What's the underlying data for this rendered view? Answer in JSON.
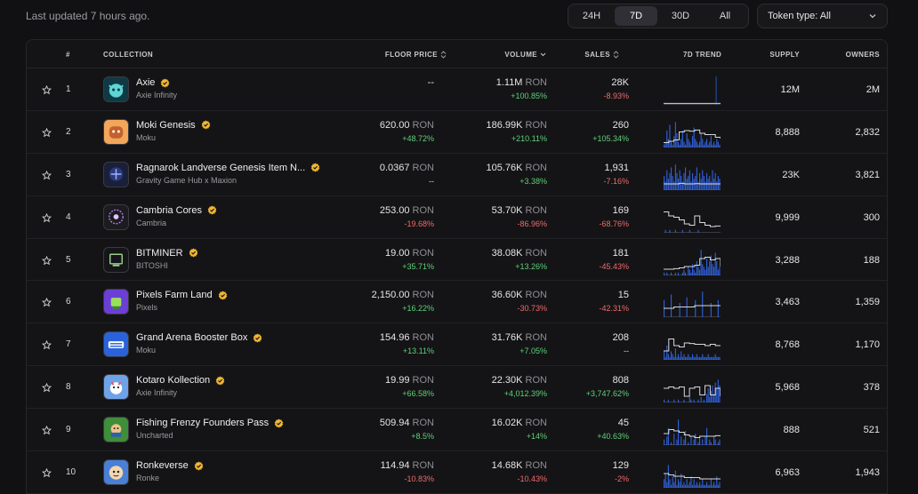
{
  "header": {
    "last_updated": "Last updated 7 hours ago.",
    "periods": [
      {
        "label": "24H",
        "active": false
      },
      {
        "label": "7D",
        "active": true
      },
      {
        "label": "30D",
        "active": false
      },
      {
        "label": "All",
        "active": false
      }
    ],
    "token_type": "Token type: All"
  },
  "columns": {
    "rank": "#",
    "collection": "COLLECTION",
    "floor_price": "FLOOR PRICE",
    "volume": "VOLUME",
    "sales": "SALES",
    "trend": "7D TREND",
    "supply": "SUPPLY",
    "owners": "OWNERS"
  },
  "colors": {
    "positive": "#5fd07a",
    "negative": "#ef6a6a",
    "trend_line": "#d8d8dc",
    "trend_bar": "#2f5fd6",
    "verified": "#f2b632"
  },
  "rows": [
    {
      "rank": "1",
      "name": "Axie",
      "creator": "Axie Infinity",
      "icon": "axie-logo-icon",
      "icon_bg": "#0f3a45",
      "floor": "--",
      "floor_unit": "",
      "floor_change": "",
      "floor_change_dir": "neu",
      "volume": "1.11M",
      "volume_unit": "RON",
      "volume_change": "+100.85%",
      "volume_change_dir": "pos",
      "sales": "28K",
      "sales_change": "-8.93%",
      "sales_change_dir": "neg",
      "supply": "12M",
      "owners": "2M",
      "trend_bars": [
        0,
        0,
        0,
        0,
        0,
        0,
        0,
        0,
        0,
        0,
        0,
        0,
        0,
        0,
        0,
        0,
        0,
        0,
        0,
        0,
        0,
        0,
        0,
        0,
        0,
        0,
        0,
        0,
        0,
        0,
        0,
        0,
        0,
        0,
        0,
        0,
        0,
        0,
        0,
        0,
        0,
        0,
        0,
        0,
        0,
        0,
        0,
        0,
        0,
        0,
        0,
        0,
        0,
        0,
        0,
        1,
        0,
        0,
        0,
        0
      ],
      "trend_line": [
        0.02,
        0.02,
        0.02,
        0.02,
        0.02,
        0.02,
        0.02,
        0.02,
        0.02,
        0.02,
        0.02,
        0.02
      ]
    },
    {
      "rank": "2",
      "name": "Moki Genesis",
      "creator": "Moku",
      "icon": "moki-logo-icon",
      "icon_bg": "#f2a65a",
      "floor": "620.00",
      "floor_unit": "RON",
      "floor_change": "+48.72%",
      "floor_change_dir": "pos",
      "volume": "186.99K",
      "volume_unit": "RON",
      "volume_change": "+210.11%",
      "volume_change_dir": "pos",
      "sales": "260",
      "sales_change": "+105.34%",
      "sales_change_dir": "pos",
      "supply": "8,888",
      "owners": "2,832",
      "trend_bars": [
        0.1,
        0.2,
        0.6,
        0.3,
        0.8,
        0.2,
        0.1,
        0.4,
        0.9,
        0.5,
        0.2,
        0.1,
        0.3,
        0.6,
        0.2,
        0.1,
        0.5,
        0.3,
        0.2,
        0.1,
        0.4,
        0.7,
        0.3,
        0.2,
        0.1,
        0.2,
        0.5,
        0.3,
        0.1,
        0.2,
        0.3,
        0.1,
        0.2,
        0.4,
        0.1,
        0.2,
        0.1,
        0.3,
        0.2,
        0.1
      ],
      "trend_line": [
        0.15,
        0.2,
        0.25,
        0.55,
        0.6,
        0.58,
        0.62,
        0.5,
        0.45,
        0.45,
        0.35,
        0.3
      ]
    },
    {
      "rank": "3",
      "name": "Ragnarok Landverse Genesis Item N...",
      "creator": "Gravity Game Hub x Maxion",
      "icon": "ragnarok-logo-icon",
      "icon_bg": "#1a1f3a",
      "floor": "0.0367",
      "floor_unit": "RON",
      "floor_change": "--",
      "floor_change_dir": "neu",
      "volume": "105.76K",
      "volume_unit": "RON",
      "volume_change": "+3.38%",
      "volume_change_dir": "pos",
      "sales": "1,931",
      "sales_change": "-7.16%",
      "sales_change_dir": "neg",
      "supply": "23K",
      "owners": "3,821",
      "trend_bars": [
        0.5,
        0.3,
        0.7,
        0.4,
        0.6,
        0.8,
        0.5,
        0.3,
        0.9,
        0.6,
        0.4,
        0.7,
        0.5,
        0.3,
        0.6,
        0.8,
        0.4,
        0.5,
        0.7,
        0.3,
        0.6,
        0.4,
        0.5,
        0.8,
        0.3,
        0.6,
        0.4,
        0.7,
        0.5,
        0.3,
        0.6,
        0.4,
        0.5,
        0.3,
        0.7,
        0.4,
        0.6,
        0.3,
        0.5,
        0.4
      ],
      "trend_line": [
        0.2,
        0.2,
        0.2,
        0.22,
        0.2,
        0.2,
        0.21,
        0.2,
        0.2,
        0.2,
        0.2,
        0.2
      ]
    },
    {
      "rank": "4",
      "name": "Cambria Cores",
      "creator": "Cambria",
      "icon": "cambria-logo-icon",
      "icon_bg": "#1b1b20",
      "floor": "253.00",
      "floor_unit": "RON",
      "floor_change": "-19.68%",
      "floor_change_dir": "neg",
      "volume": "53.70K",
      "volume_unit": "RON",
      "volume_change": "-86.96%",
      "volume_change_dir": "neg",
      "sales": "169",
      "sales_change": "-68.76%",
      "sales_change_dir": "neg",
      "supply": "9,999",
      "owners": "300",
      "trend_bars": [
        0,
        0.1,
        0,
        0,
        0.1,
        0,
        0,
        0,
        0.1,
        0,
        0,
        0,
        0,
        0.1,
        0,
        0,
        0,
        0,
        0.1,
        0,
        0,
        0,
        0,
        0,
        0.1,
        0,
        0,
        0,
        0,
        0,
        0,
        0,
        0,
        0,
        0,
        0,
        0,
        0,
        0,
        0
      ],
      "trend_line": [
        0.75,
        0.6,
        0.55,
        0.45,
        0.3,
        0.25,
        0.6,
        0.35,
        0.25,
        0.2,
        0.22,
        0.2
      ]
    },
    {
      "rank": "5",
      "name": "BITMINER",
      "creator": "BITOSHI",
      "icon": "bitminer-logo-icon",
      "icon_bg": "#15151a",
      "floor": "19.00",
      "floor_unit": "RON",
      "floor_change": "+35.71%",
      "floor_change_dir": "pos",
      "volume": "38.08K",
      "volume_unit": "RON",
      "volume_change": "+13.26%",
      "volume_change_dir": "pos",
      "sales": "181",
      "sales_change": "-45.43%",
      "sales_change_dir": "neg",
      "supply": "3,288",
      "owners": "188",
      "trend_bars": [
        0.1,
        0,
        0.1,
        0,
        0,
        0.1,
        0,
        0,
        0.1,
        0,
        0.1,
        0,
        0,
        0.1,
        0.2,
        0.1,
        0,
        0.3,
        0.2,
        0.1,
        0.4,
        0.2,
        0.1,
        0.5,
        0.3,
        0.2,
        0.9,
        0.4,
        0.3,
        0.2,
        0.6,
        0.3,
        0.5,
        0.7,
        0.4,
        0.3,
        0.8,
        0.5,
        0.2,
        0.3
      ],
      "trend_line": [
        0.2,
        0.2,
        0.22,
        0.25,
        0.3,
        0.3,
        0.35,
        0.6,
        0.65,
        0.55,
        0.6,
        0.3
      ]
    },
    {
      "rank": "6",
      "name": "Pixels Farm Land",
      "creator": "Pixels",
      "icon": "pixels-logo-icon",
      "icon_bg": "#6b3fd6",
      "floor": "2,150.00",
      "floor_unit": "RON",
      "floor_change": "+16.22%",
      "floor_change_dir": "pos",
      "volume": "36.60K",
      "volume_unit": "RON",
      "volume_change": "-30.73%",
      "volume_change_dir": "neg",
      "sales": "15",
      "sales_change": "-42.31%",
      "sales_change_dir": "neg",
      "supply": "3,463",
      "owners": "1,359",
      "trend_bars": [
        0.6,
        0,
        0,
        0,
        0,
        0.8,
        0,
        0,
        0,
        0,
        0,
        0.5,
        0,
        0,
        0,
        0,
        0.7,
        0,
        0,
        0,
        0,
        0,
        0.6,
        0,
        0,
        0,
        0,
        0.9,
        0,
        0,
        0,
        0,
        0,
        0.5,
        0,
        0,
        0,
        0,
        0.6,
        0
      ],
      "trend_line": [
        0.3,
        0.3,
        0.35,
        0.35,
        0.35,
        0.35,
        0.4,
        0.4,
        0.4,
        0.4,
        0.4,
        0.4
      ]
    },
    {
      "rank": "7",
      "name": "Grand Arena Booster Box",
      "creator": "Moku",
      "icon": "grand-arena-logo-icon",
      "icon_bg": "#2a63d9",
      "floor": "154.96",
      "floor_unit": "RON",
      "floor_change": "+13.11%",
      "floor_change_dir": "pos",
      "volume": "31.76K",
      "volume_unit": "RON",
      "volume_change": "+7.05%",
      "volume_change_dir": "pos",
      "sales": "208",
      "sales_change": "--",
      "sales_change_dir": "neu",
      "supply": "8,768",
      "owners": "1,170",
      "trend_bars": [
        0.3,
        0.1,
        0.5,
        0.2,
        0.1,
        0.3,
        0.2,
        0.1,
        0.4,
        0.1,
        0.2,
        0.1,
        0.3,
        0.1,
        0.2,
        0.1,
        0.1,
        0.2,
        0.1,
        0.1,
        0.2,
        0.1,
        0.1,
        0.2,
        0.1,
        0.1,
        0.1,
        0.2,
        0.1,
        0.1,
        0.1,
        0.2,
        0.1,
        0.1,
        0.1,
        0.1,
        0.2,
        0.1,
        0.1,
        0.1
      ],
      "trend_line": [
        0.3,
        0.75,
        0.5,
        0.45,
        0.6,
        0.58,
        0.55,
        0.55,
        0.5,
        0.55,
        0.5,
        0.5
      ]
    },
    {
      "rank": "8",
      "name": "Kotaro Kollection",
      "creator": "Axie Infinity",
      "icon": "kotaro-logo-icon",
      "icon_bg": "#6fa3e8",
      "floor": "19.99",
      "floor_unit": "RON",
      "floor_change": "+66.58%",
      "floor_change_dir": "pos",
      "volume": "22.30K",
      "volume_unit": "RON",
      "volume_change": "+4,012.39%",
      "volume_change_dir": "pos",
      "sales": "808",
      "sales_change": "+3,747.62%",
      "sales_change_dir": "pos",
      "supply": "5,968",
      "owners": "378",
      "trend_bars": [
        0.1,
        0,
        0,
        0.1,
        0,
        0,
        0,
        0.1,
        0,
        0,
        0.1,
        0,
        0,
        0,
        0.1,
        0,
        0,
        0,
        0.2,
        0.1,
        0,
        0.1,
        0,
        0,
        0.1,
        0,
        0.2,
        0,
        0.1,
        0,
        0.3,
        0.5,
        0.2,
        0.4,
        0.6,
        0.3,
        0.7,
        0.5,
        0.8,
        0.6
      ],
      "trend_line": [
        0.5,
        0.55,
        0.5,
        0.55,
        0.2,
        0.5,
        0.55,
        0.25,
        0.6,
        0.25,
        0.5,
        0.2
      ]
    },
    {
      "rank": "9",
      "name": "Fishing Frenzy Founders Pass",
      "creator": "Uncharted",
      "icon": "fishing-frenzy-logo-icon",
      "icon_bg": "#3f8e3a",
      "floor": "509.94",
      "floor_unit": "RON",
      "floor_change": "+8.5%",
      "floor_change_dir": "pos",
      "volume": "16.02K",
      "volume_unit": "RON",
      "volume_change": "+14%",
      "volume_change_dir": "pos",
      "sales": "45",
      "sales_change": "+40.63%",
      "sales_change_dir": "pos",
      "supply": "888",
      "owners": "521",
      "trend_bars": [
        0.2,
        0,
        0.3,
        0.6,
        0,
        0.1,
        0,
        0.4,
        0,
        0.2,
        0.9,
        0,
        0.3,
        0,
        0.2,
        0.5,
        0,
        0.1,
        0,
        0.3,
        0,
        0.2,
        0.4,
        0,
        0.1,
        0.3,
        0,
        0.2,
        0,
        0.3,
        0.6,
        0,
        0.2,
        0.1,
        0,
        0.3,
        0.2,
        0,
        0.1,
        0.2
      ],
      "trend_line": [
        0.4,
        0.55,
        0.5,
        0.45,
        0.35,
        0.3,
        0.25,
        0.3,
        0.3,
        0.3,
        0.32,
        0.3
      ]
    },
    {
      "rank": "10",
      "name": "Ronkeverse",
      "creator": "Ronke",
      "icon": "ronke-logo-icon",
      "icon_bg": "#4a7fd6",
      "floor": "114.94",
      "floor_unit": "RON",
      "floor_change": "-10.83%",
      "floor_change_dir": "neg",
      "volume": "14.68K",
      "volume_unit": "RON",
      "volume_change": "-10.43%",
      "volume_change_dir": "neg",
      "sales": "129",
      "sales_change": "-2%",
      "sales_change_dir": "neg",
      "supply": "6,963",
      "owners": "1,943",
      "trend_bars": [
        0.3,
        0.5,
        0.2,
        0.8,
        0.3,
        0.1,
        0.4,
        0.2,
        0.6,
        0.1,
        0.3,
        0.2,
        0.5,
        0.1,
        0.2,
        0.1,
        0.3,
        0.1,
        0.2,
        0.4,
        0.1,
        0.3,
        0.1,
        0.2,
        0.1,
        0.2,
        0.1,
        0.3,
        0.1,
        0.1,
        0.2,
        0.1,
        0.1,
        0.3,
        0.1,
        0.2,
        0.1,
        0.4,
        0.1,
        0.2
      ],
      "trend_line": [
        0.5,
        0.45,
        0.4,
        0.4,
        0.35,
        0.35,
        0.35,
        0.3,
        0.3,
        0.3,
        0.3,
        0.3
      ]
    }
  ]
}
